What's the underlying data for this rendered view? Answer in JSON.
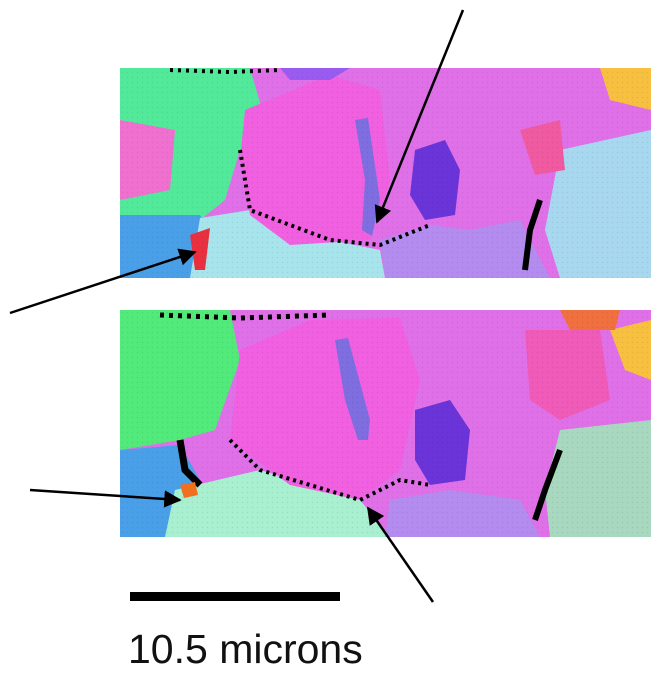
{
  "scale_bar": {
    "label": "10.5 microns"
  }
}
